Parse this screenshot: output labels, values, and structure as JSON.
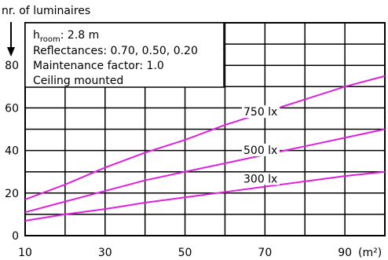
{
  "chart_data": {
    "type": "line",
    "y_label": "nr. of luminaires",
    "x_unit": "(m²)",
    "annotation": {
      "h": "h",
      "h_sub": "room",
      "h_value": ": 2.8 m",
      "lines": [
        "Reflectances:  0.70, 0.50, 0.20",
        "Maintenance factor:  1.0",
        "Ceiling mounted"
      ]
    },
    "x": [
      10,
      20,
      30,
      40,
      50,
      60,
      70,
      80,
      90,
      100
    ],
    "series": [
      {
        "name": "750 lx",
        "color": "#e020e0",
        "values": [
          17,
          24,
          32,
          39,
          45,
          52,
          58,
          64,
          70,
          75
        ]
      },
      {
        "name": "500 lx",
        "color": "#e020e0",
        "values": [
          11,
          16,
          21,
          26,
          30,
          34,
          38,
          42,
          46,
          50
        ]
      },
      {
        "name": "300 lx",
        "color": "#e020e0",
        "values": [
          7,
          10,
          12.5,
          15.5,
          18,
          20.5,
          23,
          25.5,
          28,
          30
        ]
      }
    ],
    "xlim": [
      10,
      100
    ],
    "ylim": [
      0,
      100
    ],
    "xticks": [
      10,
      30,
      50,
      70,
      90
    ],
    "yticks": [
      0,
      20,
      40,
      60,
      80
    ],
    "x_minor_grid": [
      20,
      40,
      60,
      80
    ],
    "y_minor_grid": [
      10,
      30,
      50,
      70,
      90
    ],
    "grid": true
  }
}
